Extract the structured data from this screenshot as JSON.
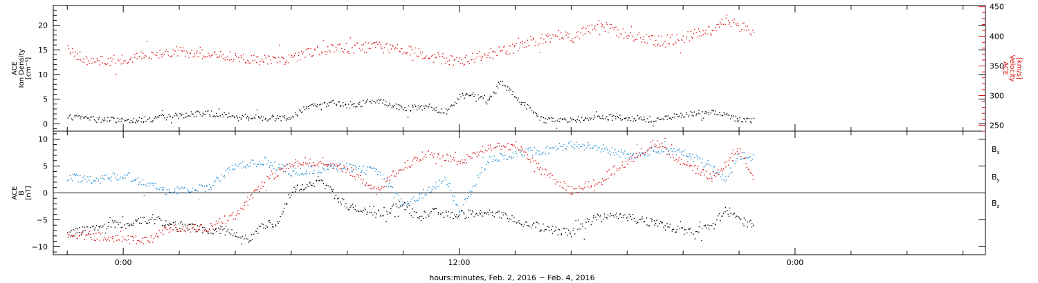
{
  "chart_data": [
    {
      "type": "scatter",
      "panel": "plasma",
      "left_axis": {
        "label_lines": [
          "ACE",
          "Ion Density",
          "[cm⁻³]"
        ],
        "ylim": [
          -1.5,
          24
        ],
        "ticks": [
          0,
          5,
          10,
          15,
          20
        ],
        "tick_labels": [
          "0",
          "5",
          "10",
          "15",
          "20"
        ],
        "color": "#000000"
      },
      "right_axis": {
        "label_lines": [
          "ACE",
          "Velocity",
          "[km/s]"
        ],
        "ylim": [
          240,
          452
        ],
        "ticks": [
          250,
          300,
          350,
          400,
          450
        ],
        "tick_labels": [
          "250",
          "300",
          "350",
          "400",
          "450"
        ],
        "color": "#dd1111"
      },
      "series": [
        {
          "axis": "left",
          "color": "#000000",
          "x": [
            -2,
            -1,
            0,
            1,
            2,
            3,
            4,
            5,
            6,
            6.6,
            7,
            7.5,
            8,
            9,
            10,
            11,
            11.5,
            12,
            12.5,
            13,
            13.5,
            14,
            15,
            16,
            17,
            18,
            19,
            20,
            21,
            22,
            22.5
          ],
          "y": [
            1.5,
            1.0,
            0.8,
            1.0,
            1.8,
            2.2,
            1.6,
            1.2,
            1.5,
            3.8,
            3.5,
            4.5,
            3.6,
            4.8,
            3.2,
            3.5,
            2.2,
            5.5,
            6.2,
            4.5,
            8.5,
            5.5,
            0.8,
            0.8,
            1.5,
            1.2,
            0.9,
            1.8,
            2.5,
            1.0,
            0.8
          ]
        },
        {
          "axis": "right",
          "color": "#dd1111",
          "x": [
            -2,
            -1.5,
            -1,
            0,
            1,
            2,
            3,
            4,
            5,
            6,
            6.5,
            7,
            8,
            9,
            10,
            11,
            12,
            12.5,
            13,
            13.5,
            14,
            15,
            15.5,
            16,
            17,
            18,
            19,
            20,
            21,
            21.5,
            22,
            22.5
          ],
          "y": [
            380,
            365,
            360,
            360,
            368,
            375,
            370,
            365,
            360,
            362,
            372,
            378,
            380,
            383,
            378,
            366,
            358,
            365,
            370,
            375,
            380,
            396,
            402,
            398,
            420,
            402,
            392,
            398,
            412,
            430,
            418,
            410
          ]
        }
      ]
    },
    {
      "type": "scatter",
      "panel": "magnetic_field",
      "left_axis": {
        "label_lines": [
          "ACE",
          "B",
          "[nT]"
        ],
        "ylim": [
          -11.5,
          11.5
        ],
        "ticks": [
          -10,
          -5,
          0,
          5,
          10
        ],
        "tick_labels": [
          "−10",
          "−5",
          "0",
          "5",
          "10"
        ],
        "color": "#000000"
      },
      "zero_line": true,
      "legend": {
        "placement": "right",
        "entries": [
          {
            "main": "B",
            "sub": "x",
            "color": "#000000"
          },
          {
            "main": "B",
            "sub": "y",
            "color": "#1a8ad4"
          },
          {
            "main": "B",
            "sub": "z",
            "color": "#dd1111"
          }
        ]
      },
      "series": [
        {
          "color": "#000000",
          "x": [
            -2,
            -1,
            0,
            1,
            2,
            3,
            4,
            4.5,
            5,
            5.5,
            6,
            7,
            8,
            9,
            10,
            10.5,
            11,
            12,
            13,
            14,
            15,
            16,
            17,
            18,
            19,
            20,
            21,
            21.5,
            22,
            22.5
          ],
          "y": [
            -7.5,
            -6.5,
            -5.5,
            -4.8,
            -6.0,
            -6.8,
            -7.2,
            -8.5,
            -6.0,
            -5.5,
            0.5,
            2.5,
            -2.5,
            -4.0,
            -2.0,
            -4.5,
            -3.5,
            -4.0,
            -3.5,
            -5.0,
            -6.5,
            -7.5,
            -4.0,
            -4.5,
            -5.5,
            -7.0,
            -6.5,
            -3.0,
            -5.0,
            -6.0
          ]
        },
        {
          "color": "#1a8ad4",
          "x": [
            -2,
            -1,
            0,
            1,
            1.5,
            2,
            3,
            4,
            5,
            6,
            7,
            8,
            9,
            9.5,
            10,
            11,
            11.5,
            12,
            13,
            14,
            15,
            16,
            17,
            18,
            19,
            20,
            21,
            21.5,
            22,
            22.5
          ],
          "y": [
            3.0,
            2.5,
            3.5,
            1.5,
            0.5,
            0.5,
            1.0,
            5.0,
            6.0,
            4.0,
            4.5,
            5.0,
            4.0,
            1.5,
            -2.5,
            1.0,
            3.0,
            -3.5,
            6.0,
            7.5,
            8.0,
            9.0,
            8.5,
            7.0,
            8.0,
            7.5,
            5.0,
            2.5,
            7.0,
            6.5
          ]
        },
        {
          "color": "#dd1111",
          "x": [
            -2,
            -1,
            0,
            0.5,
            1,
            1.5,
            2,
            3,
            4,
            5,
            6,
            7,
            8,
            9,
            10,
            11,
            12,
            13,
            14,
            15,
            16,
            17,
            18,
            19,
            20,
            21,
            21.5,
            22,
            22.5
          ],
          "y": [
            -7.5,
            -8.0,
            -8.5,
            -8.8,
            -8.5,
            -6.5,
            -6.5,
            -6.5,
            -4.0,
            2.0,
            5.5,
            6.0,
            4.5,
            0.5,
            5.0,
            7.5,
            6.0,
            8.5,
            9.0,
            4.0,
            0.5,
            2.5,
            6.0,
            9.5,
            5.5,
            3.0,
            5.0,
            8.0,
            2.5
          ]
        }
      ]
    }
  ],
  "x_axis": {
    "xlim": [
      -2.5,
      30.8
    ],
    "major_ticks": [
      0,
      12,
      24
    ],
    "tick_labels": [
      "0:00",
      "12:00",
      "0:00"
    ],
    "minor_step": 2,
    "xlabel": "hours:minutes, Feb.  2, 2016 − Feb.  4, 2016"
  }
}
